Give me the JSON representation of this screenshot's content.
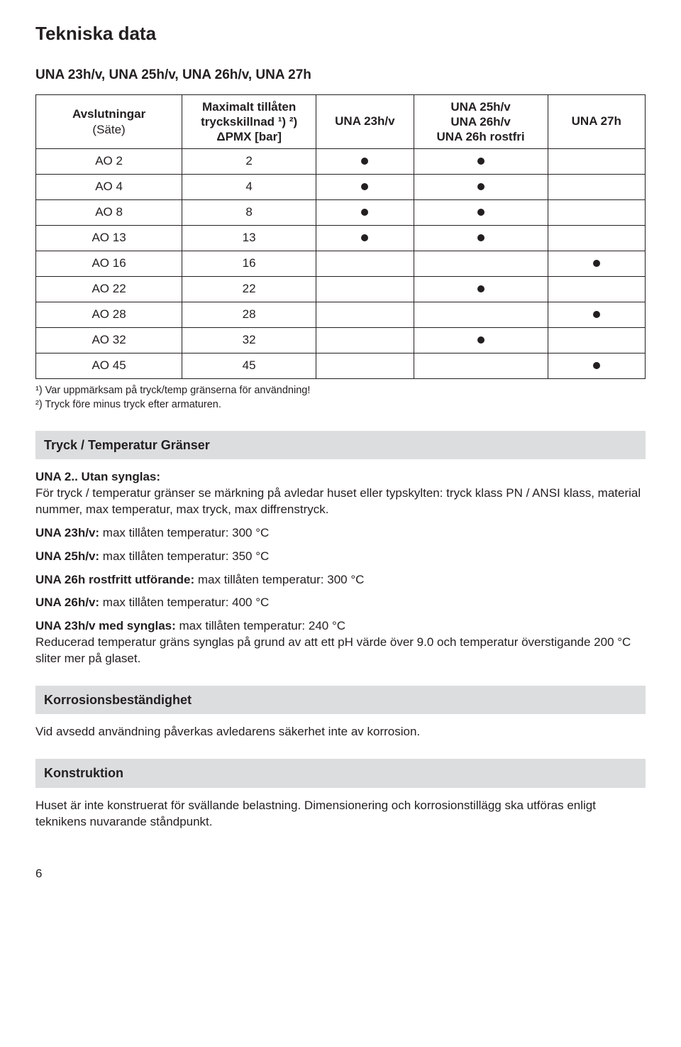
{
  "title": "Tekniska data",
  "tableTitle": "UNA 23h/v, UNA 25h/v, UNA 26h/v, UNA 27h",
  "table": {
    "headers": {
      "avslut_line1": "Avslutningar",
      "avslut_line2": "(Säte)",
      "pmx_line1": "Maximalt tillåten",
      "pmx_line2": "tryckskillnad ¹) ²)",
      "pmx_line3": "ΔPMX [bar]",
      "c23": "UNA 23h/v",
      "c25_line1": "UNA 25h/v",
      "c25_line2": "UNA 26h/v",
      "c25_line3": "UNA 26h rostfri",
      "c27": "UNA 27h"
    },
    "rows": [
      {
        "label": "AO  2",
        "pmx": "2",
        "c23": true,
        "c25": true,
        "c27": false
      },
      {
        "label": "AO  4",
        "pmx": "4",
        "c23": true,
        "c25": true,
        "c27": false
      },
      {
        "label": "AO  8",
        "pmx": "8",
        "c23": true,
        "c25": true,
        "c27": false
      },
      {
        "label": "AO 13",
        "pmx": "13",
        "c23": true,
        "c25": true,
        "c27": false
      },
      {
        "label": "AO 16",
        "pmx": "16",
        "c23": false,
        "c25": false,
        "c27": true
      },
      {
        "label": "AO 22",
        "pmx": "22",
        "c23": false,
        "c25": true,
        "c27": false
      },
      {
        "label": "AO 28",
        "pmx": "28",
        "c23": false,
        "c25": false,
        "c27": true
      },
      {
        "label": "AO 32",
        "pmx": "32",
        "c23": false,
        "c25": true,
        "c27": false
      },
      {
        "label": "AO 45",
        "pmx": "45",
        "c23": false,
        "c25": false,
        "c27": true
      }
    ]
  },
  "footnotes": {
    "f1": "¹) Var uppmärksam på tryck/temp gränserna för användning!",
    "f2": "²) Tryck före minus tryck efter armaturen."
  },
  "sec1": {
    "heading": "Tryck / Temperatur Gränser",
    "p1_bold": "UNA 2.. Utan synglas:",
    "p1_text": "För tryck / temperatur gränser se märkning på avledar huset eller typskylten: tryck klass PN / ANSI klass, material nummer, max temperatur, max tryck, max diffrenstryck.",
    "p2_bold": "UNA 23h/v:",
    "p2_text": "max tillåten temperatur: 300 °C",
    "p3_bold": "UNA 25h/v:",
    "p3_text": "max tillåten temperatur: 350 °C",
    "p4_bold": "UNA 26h rostfritt utförande:",
    "p4_text": "max tillåten temperatur: 300 °C",
    "p5_bold": "UNA 26h/v:",
    "p5_text": "max tillåten temperatur: 400 °C",
    "p6_bold": "UNA 23h/v med synglas:",
    "p6_text": "max tillåten temperatur: 240 °C",
    "p6_extra": "Reducerad temperatur gräns synglas på grund av att ett pH värde över 9.0 och temperatur överstigande 200 °C sliter mer på glaset."
  },
  "sec2": {
    "heading": "Korrosionsbeständighet",
    "text": "Vid avsedd användning påverkas avledarens säkerhet inte av korrosion."
  },
  "sec3": {
    "heading": "Konstruktion",
    "text": "Huset är inte konstruerat för svällande belastning. Dimensionering och korrosionstillägg ska utföras enligt teknikens nuvarande ståndpunkt."
  },
  "pageNumber": "6"
}
